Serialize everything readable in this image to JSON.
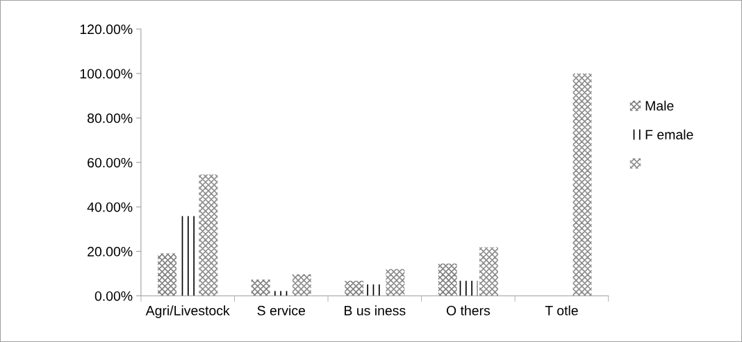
{
  "chart_data": {
    "type": "bar",
    "categories": [
      "Agri/Livestock",
      "S ervice",
      "B us iness",
      "O thers",
      "T otle"
    ],
    "series": [
      {
        "name": "Male",
        "color": "#7f7f7f",
        "values": [
          19.1,
          7.3,
          6.8,
          14.5,
          null
        ]
      },
      {
        "name": "F emale",
        "color": "#000000",
        "values": [
          35.9,
          2.2,
          5.1,
          6.8,
          null
        ]
      },
      {
        "color": "#8c8c8c",
        "values": [
          54.6,
          9.7,
          12.1,
          21.8,
          100
        ]
      }
    ],
    "ylim": [
      0,
      120
    ],
    "yticks": [
      {
        "value": 0,
        "label": "0.00%"
      },
      {
        "value": 20,
        "label": "20.00%"
      },
      {
        "value": 40,
        "label": "40.00%"
      },
      {
        "value": 60,
        "label": "60.00%"
      },
      {
        "value": 80,
        "label": "80.00%"
      },
      {
        "value": 100,
        "label": "100.00%"
      },
      {
        "value": 120,
        "label": "120.00%"
      }
    ],
    "grid": false,
    "legend": "right"
  }
}
